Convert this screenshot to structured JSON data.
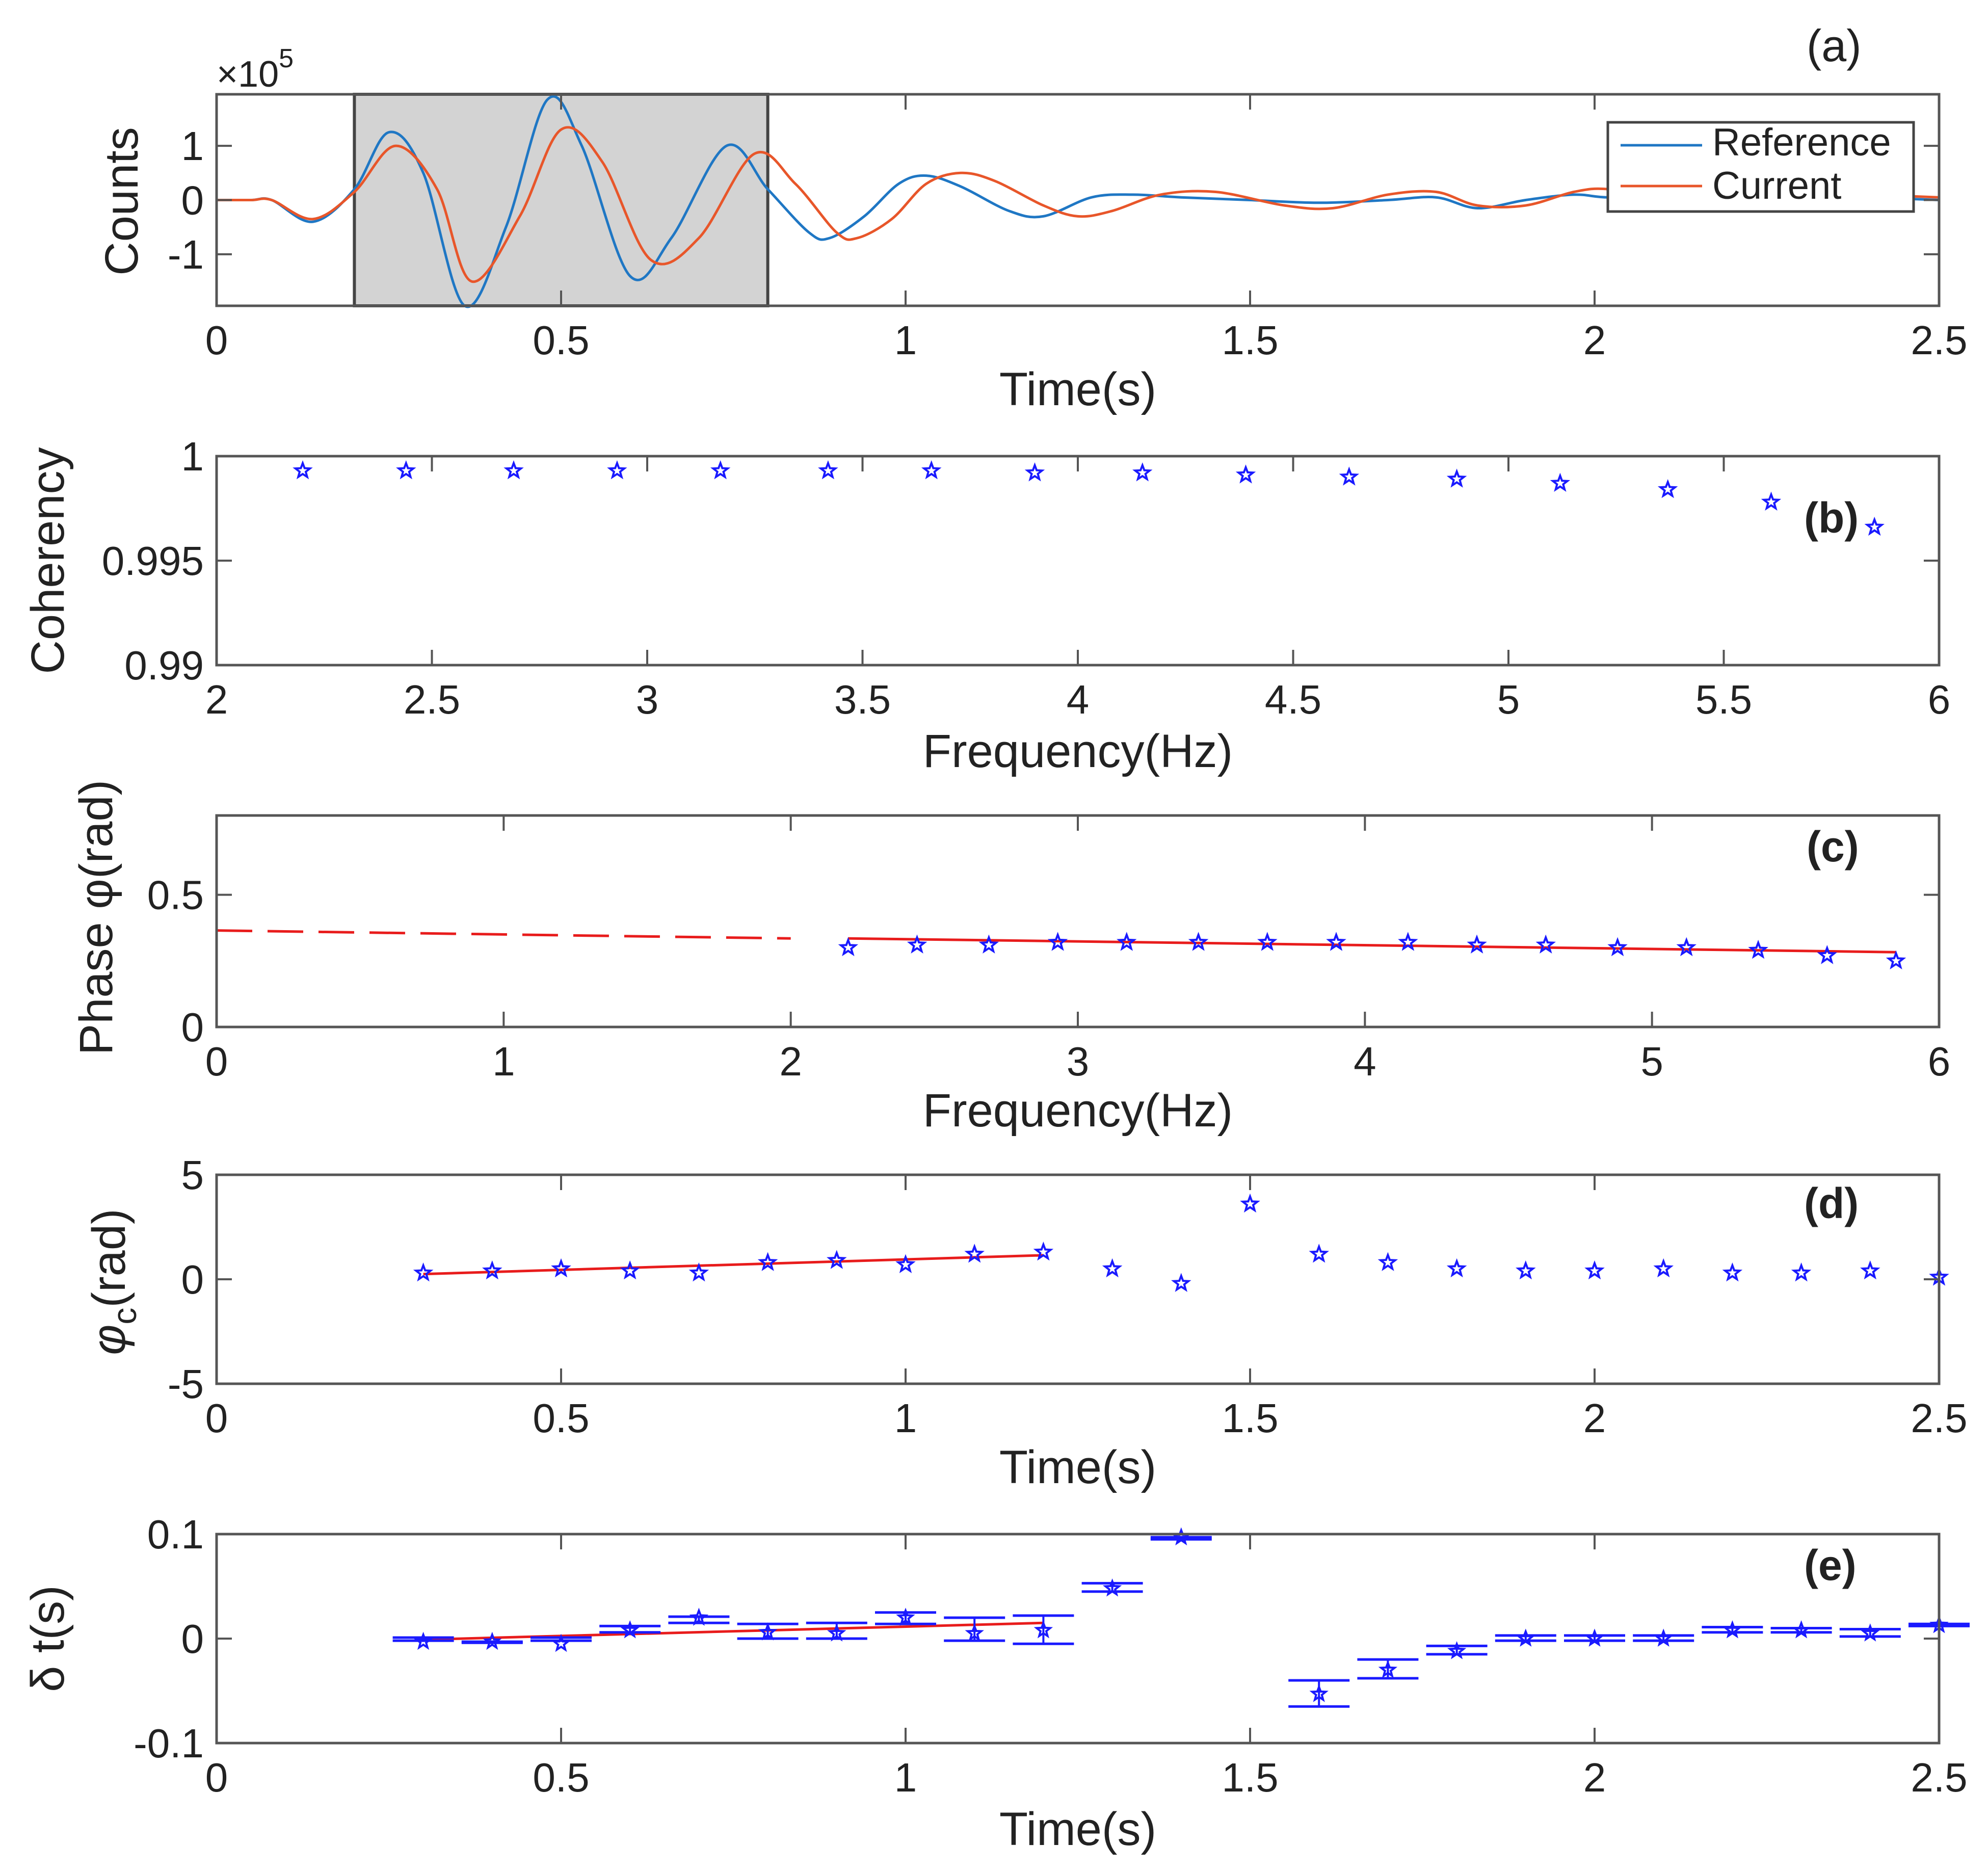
{
  "chart_data": [
    {
      "id": "a",
      "type": "line",
      "panel_label": "(a)",
      "xlabel": "Time(s)",
      "ylabel": "Counts",
      "y_multiplier": "×10",
      "y_multiplier_exponent": "5",
      "xlim": [
        0,
        2.5
      ],
      "ylim": [
        -1.95,
        1.95
      ],
      "xticks": [
        0,
        0.5,
        1,
        1.5,
        2,
        2.5
      ],
      "xtick_labels": [
        "0",
        "0.5",
        "1",
        "1.5",
        "2",
        "2.5"
      ],
      "yticks": [
        -1,
        0,
        1
      ],
      "ytick_labels": [
        "-1",
        "0",
        "1"
      ],
      "shaded_window": [
        0.2,
        0.8
      ],
      "series": [
        {
          "name": "Reference",
          "color": "#1f77c4",
          "x": [
            0,
            0.05,
            0.08,
            0.14,
            0.2,
            0.25,
            0.3,
            0.36,
            0.42,
            0.48,
            0.53,
            0.6,
            0.66,
            0.74,
            0.8,
            0.86,
            0.89,
            0.94,
            0.99,
            1.03,
            1.08,
            1.15,
            1.2,
            1.27,
            1.33,
            1.4,
            1.5,
            1.6,
            1.7,
            1.77,
            1.83,
            1.9,
            1.97,
            2.02,
            2.1,
            2.2,
            2.3,
            2.4,
            2.5
          ],
          "y": [
            0,
            0,
            0,
            -0.4,
            0.2,
            1.25,
            0.5,
            -1.95,
            -0.5,
            1.85,
            1.0,
            -1.4,
            -0.7,
            1.0,
            0.2,
            -0.6,
            -0.7,
            -0.3,
            0.3,
            0.45,
            0.25,
            -0.2,
            -0.3,
            0.05,
            0.1,
            0.05,
            0.0,
            -0.05,
            0.0,
            0.05,
            -0.15,
            0.0,
            0.1,
            0.05,
            0.1,
            0.05,
            0.1,
            0.05,
            0.0
          ]
        },
        {
          "name": "Current",
          "color": "#e8562a",
          "x": [
            0,
            0.05,
            0.08,
            0.14,
            0.2,
            0.26,
            0.32,
            0.37,
            0.44,
            0.5,
            0.56,
            0.63,
            0.7,
            0.78,
            0.84,
            0.9,
            0.93,
            0.98,
            1.03,
            1.08,
            1.13,
            1.2,
            1.25,
            1.3,
            1.37,
            1.45,
            1.55,
            1.62,
            1.7,
            1.77,
            1.83,
            1.9,
            1.97,
            2.02,
            2.1,
            2.2,
            2.3,
            2.4,
            2.5
          ],
          "y": [
            0,
            0,
            0,
            -0.35,
            0.15,
            1.0,
            0.2,
            -1.5,
            -0.3,
            1.3,
            0.7,
            -1.1,
            -0.7,
            0.85,
            0.3,
            -0.6,
            -0.7,
            -0.35,
            0.3,
            0.5,
            0.35,
            -0.1,
            -0.3,
            -0.2,
            0.1,
            0.15,
            -0.1,
            -0.15,
            0.1,
            0.15,
            -0.1,
            -0.1,
            0.15,
            0.2,
            0.0,
            0.1,
            0.15,
            0.1,
            0.05
          ]
        }
      ]
    },
    {
      "id": "b",
      "type": "scatter",
      "panel_label": "(b)",
      "xlabel": "Frequency(Hz)",
      "ylabel": "Coherency",
      "xlim": [
        2,
        6
      ],
      "ylim": [
        0.99,
        1.0
      ],
      "xticks": [
        2,
        2.5,
        3,
        3.5,
        4,
        4.5,
        5,
        5.5,
        6
      ],
      "xtick_labels": [
        "2",
        "2.5",
        "3",
        "3.5",
        "4",
        "4.5",
        "5",
        "5.5",
        "6"
      ],
      "yticks": [
        0.99,
        0.995,
        1.0
      ],
      "ytick_labels": [
        "0.99",
        "0.995",
        "1"
      ],
      "marker_color": "#1a1aff",
      "x": [
        2.2,
        2.44,
        2.69,
        2.93,
        3.17,
        3.42,
        3.66,
        3.9,
        4.15,
        4.39,
        4.63,
        4.88,
        5.12,
        5.37,
        5.61,
        5.85
      ],
      "y": [
        0.9993,
        0.9993,
        0.9993,
        0.9993,
        0.9993,
        0.9993,
        0.9993,
        0.9992,
        0.9992,
        0.9991,
        0.999,
        0.9989,
        0.9987,
        0.9984,
        0.9978,
        0.9966
      ]
    },
    {
      "id": "c",
      "type": "scatter",
      "panel_label": "(c)",
      "xlabel": "Frequency(Hz)",
      "ylabel": "Phase φ(rad)",
      "xlim": [
        0,
        6
      ],
      "ylim": [
        0,
        0.8
      ],
      "xticks": [
        0,
        1,
        2,
        3,
        4,
        5,
        6
      ],
      "xtick_labels": [
        "0",
        "1",
        "2",
        "3",
        "4",
        "5",
        "6"
      ],
      "yticks": [
        0,
        0.5
      ],
      "ytick_labels": [
        "0",
        "0.5"
      ],
      "marker_color": "#1a1aff",
      "x": [
        2.2,
        2.44,
        2.69,
        2.93,
        3.17,
        3.42,
        3.66,
        3.9,
        4.15,
        4.39,
        4.63,
        4.88,
        5.12,
        5.37,
        5.61,
        5.85
      ],
      "y": [
        0.3,
        0.31,
        0.31,
        0.32,
        0.32,
        0.32,
        0.32,
        0.32,
        0.32,
        0.31,
        0.31,
        0.3,
        0.3,
        0.29,
        0.27,
        0.25
      ],
      "fit_line": {
        "color": "#e81c1c",
        "x": [
          2.2,
          5.85
        ],
        "y": [
          0.335,
          0.283
        ]
      },
      "extrapolation": {
        "color": "#e81c1c",
        "x": [
          0,
          2.0
        ],
        "y": [
          0.365,
          0.335
        ]
      }
    },
    {
      "id": "d",
      "type": "scatter",
      "panel_label": "(d)",
      "xlabel": "Time(s)",
      "ylabel": "φ",
      "ylabel_subscript": "c",
      "ylabel_suffix": "(rad)",
      "xlim": [
        0,
        2.5
      ],
      "ylim": [
        -5,
        5
      ],
      "xticks": [
        0,
        0.5,
        1,
        1.5,
        2,
        2.5
      ],
      "xtick_labels": [
        "0",
        "0.5",
        "1",
        "1.5",
        "2",
        "2.5"
      ],
      "yticks": [
        -5,
        0,
        5
      ],
      "ytick_labels": [
        "-5",
        "0",
        "5"
      ],
      "marker_color": "#1a1aff",
      "x": [
        0.3,
        0.4,
        0.5,
        0.6,
        0.7,
        0.8,
        0.9,
        1.0,
        1.1,
        1.2,
        1.3,
        1.4,
        1.5,
        1.6,
        1.7,
        1.8,
        1.9,
        2.0,
        2.1,
        2.2,
        2.3,
        2.4,
        2.5
      ],
      "y": [
        0.3,
        0.4,
        0.5,
        0.4,
        0.3,
        0.8,
        0.9,
        0.7,
        1.2,
        1.3,
        0.5,
        -0.2,
        3.6,
        1.2,
        0.8,
        0.5,
        0.4,
        0.4,
        0.5,
        0.3,
        0.3,
        0.4,
        0.1
      ],
      "fit_line": {
        "color": "#e81c1c",
        "x": [
          0.3,
          1.2
        ],
        "y": [
          0.25,
          1.15
        ]
      }
    },
    {
      "id": "e",
      "type": "scatter",
      "panel_label": "(e)",
      "xlabel": "Time(s)",
      "ylabel": "δ t(s)",
      "xlim": [
        0,
        2.5
      ],
      "ylim": [
        -0.1,
        0.1
      ],
      "xticks": [
        0,
        0.5,
        1,
        1.5,
        2,
        2.5
      ],
      "xtick_labels": [
        "0",
        "0.5",
        "1",
        "1.5",
        "2",
        "2.5"
      ],
      "yticks": [
        -0.1,
        0,
        0.1
      ],
      "ytick_labels": [
        "-0.1",
        "0",
        "0.1"
      ],
      "marker_color": "#1a1aff",
      "x": [
        0.3,
        0.4,
        0.5,
        0.6,
        0.7,
        0.8,
        0.9,
        1.0,
        1.1,
        1.2,
        1.3,
        1.4,
        1.6,
        1.7,
        1.8,
        1.9,
        2.0,
        2.1,
        2.2,
        2.3,
        2.4,
        2.5
      ],
      "y": [
        -0.003,
        -0.003,
        -0.005,
        0.008,
        0.02,
        0.006,
        0.005,
        0.02,
        0.005,
        0.008,
        0.048,
        0.097,
        -0.053,
        -0.03,
        -0.012,
        0.0,
        0.0,
        0.0,
        0.008,
        0.008,
        0.005,
        0.013
      ],
      "err_low": [
        -0.002,
        -0.004,
        -0.002,
        0.006,
        0.015,
        0.0,
        0.0,
        0.014,
        -0.002,
        -0.005,
        0.045,
        0.095,
        -0.065,
        -0.038,
        -0.015,
        -0.002,
        -0.002,
        -0.002,
        0.006,
        0.006,
        0.002,
        0.012
      ],
      "err_high": [
        0.001,
        -0.003,
        0.001,
        0.012,
        0.021,
        0.014,
        0.015,
        0.025,
        0.02,
        0.022,
        0.053,
        0.097,
        -0.04,
        -0.02,
        -0.007,
        0.003,
        0.003,
        0.003,
        0.011,
        0.01,
        0.009,
        0.014
      ],
      "fit_line": {
        "color": "#e81c1c",
        "x": [
          0.3,
          1.2
        ],
        "y": [
          -0.001,
          0.015
        ]
      }
    }
  ],
  "legend": {
    "items": [
      {
        "label": "Reference",
        "color": "#1f77c4"
      },
      {
        "label": "Current",
        "color": "#e8562a"
      }
    ]
  }
}
